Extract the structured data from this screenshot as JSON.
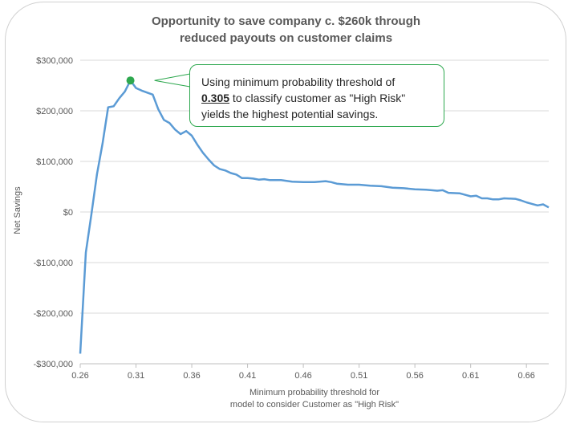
{
  "chart_data": {
    "type": "line",
    "title_lines": [
      "Opportunity to save company c. $260k through",
      "reduced payouts on customer claims"
    ],
    "xlabel_lines": [
      "Minimum probability threshold for",
      "model to consider Customer as \"High Risk\""
    ],
    "ylabel": "Net Savings",
    "xlim": [
      0.26,
      0.68
    ],
    "ylim": [
      -300000,
      300000
    ],
    "x_ticks": [
      "0.26",
      "0.31",
      "0.36",
      "0.41",
      "0.46",
      "0.51",
      "0.56",
      "0.61",
      "0.66"
    ],
    "y_ticks": [
      "$300,000",
      "$200,000",
      "$100,000",
      "$0",
      "-$100,000",
      "-$200,000",
      "-$300,000"
    ],
    "grid": true,
    "series": [
      {
        "color": "#5b9bd5",
        "x": [
          0.26,
          0.265,
          0.27,
          0.275,
          0.28,
          0.285,
          0.29,
          0.295,
          0.3,
          0.305,
          0.31,
          0.315,
          0.32,
          0.325,
          0.33,
          0.335,
          0.34,
          0.345,
          0.35,
          0.355,
          0.36,
          0.365,
          0.37,
          0.375,
          0.38,
          0.385,
          0.39,
          0.395,
          0.4,
          0.405,
          0.41,
          0.415,
          0.42,
          0.425,
          0.43,
          0.44,
          0.45,
          0.46,
          0.47,
          0.48,
          0.485,
          0.49,
          0.5,
          0.51,
          0.52,
          0.53,
          0.54,
          0.55,
          0.56,
          0.57,
          0.58,
          0.585,
          0.59,
          0.6,
          0.605,
          0.61,
          0.615,
          0.62,
          0.625,
          0.63,
          0.635,
          0.64,
          0.65,
          0.655,
          0.66,
          0.665,
          0.67,
          0.675,
          0.68
        ],
        "values": [
          -280000,
          -80000,
          -5000,
          75000,
          135000,
          207000,
          209000,
          225000,
          238000,
          260000,
          245000,
          240000,
          236000,
          232000,
          203000,
          182000,
          176000,
          163000,
          154000,
          160000,
          151000,
          133000,
          117000,
          104000,
          92000,
          85000,
          82000,
          77000,
          74000,
          67000,
          67000,
          66000,
          64000,
          65000,
          63000,
          63000,
          60000,
          59000,
          59000,
          61000,
          59000,
          56000,
          54000,
          54000,
          52000,
          51000,
          48000,
          47000,
          45000,
          44000,
          42000,
          43000,
          38000,
          37000,
          34000,
          31000,
          32000,
          27000,
          27000,
          25000,
          25000,
          27000,
          26000,
          23000,
          19000,
          16000,
          13000,
          15000,
          9000
        ]
      }
    ],
    "highlight_point": {
      "x": 0.305,
      "y": 260000,
      "color": "#2ea84f"
    },
    "annotation": {
      "line1": "Using minimum probability threshold of",
      "value": "0.305",
      "line2_rest": " to classify customer as \"High Risk\"",
      "line3": "yields the highest potential savings."
    }
  }
}
